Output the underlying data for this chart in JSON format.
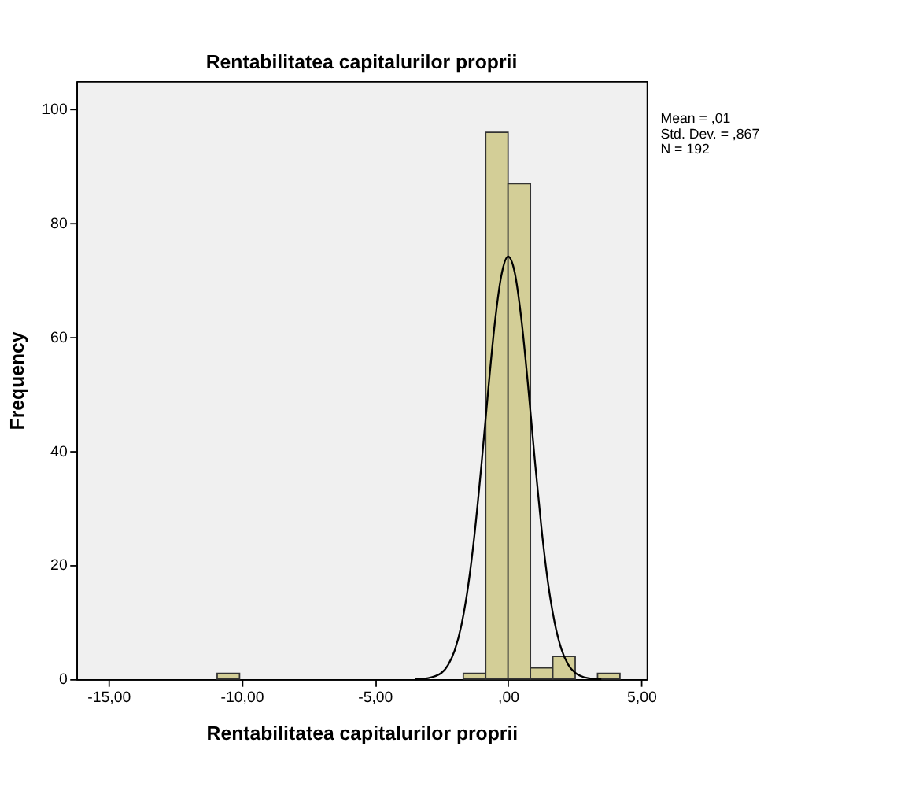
{
  "chart_data": {
    "type": "histogram",
    "title": "Rentabilitatea capitalurilor proprii",
    "xlabel": "Rentabilitatea capitalurilor proprii",
    "ylabel": "Frequency",
    "bins": [
      -10.92,
      -10.08,
      -9.24,
      -8.4,
      -7.56,
      -6.72,
      -5.88,
      -5.04,
      -4.2,
      -3.36,
      -2.52,
      -1.68,
      -0.84,
      0,
      0.84,
      1.68,
      2.52,
      3.36,
      4.2
    ],
    "values": [
      1,
      0,
      0,
      0,
      0,
      0,
      0,
      0,
      0,
      0,
      0,
      1,
      96,
      87,
      2,
      4,
      0,
      1
    ],
    "color": "#d3ce97",
    "series": [
      {
        "type": "line",
        "color": "#000000",
        "x": [
          -3.5,
          -3,
          -2.5,
          -2.25,
          -2,
          -1.75,
          -1.5,
          -1.25,
          -1,
          -0.75,
          -0.5,
          -0.25,
          0,
          0.25,
          0.5,
          0.75,
          1,
          1.25,
          1.5,
          1.75,
          2,
          2.25,
          2.5,
          3,
          3.5
        ],
        "values": [
          0.0,
          0.2,
          1.1,
          2.5,
          5.1,
          9.5,
          16.3,
          25.8,
          37.6,
          50.5,
          62.4,
          70.9,
          74.2,
          71.4,
          63.2,
          51.6,
          38.7,
          26.7,
          16.9,
          9.9,
          5.3,
          2.6,
          1.2,
          0.2,
          0.0
        ]
      }
    ],
    "xlim": [
      -16.2,
      5.2
    ],
    "ylim": [
      0,
      105
    ],
    "xticks": [
      {
        "value": -15,
        "label": "-15,00"
      },
      {
        "value": -10,
        "label": "-10,00"
      },
      {
        "value": -5,
        "label": "-5,00"
      },
      {
        "value": 0,
        "label": ",00"
      },
      {
        "value": 5,
        "label": "5,00"
      }
    ],
    "yticks": [
      0,
      20,
      40,
      60,
      80,
      100
    ],
    "grid": false,
    "annotations": [
      "Mean = ,01",
      "Std. Dev. = ,867",
      "N = 192"
    ]
  }
}
